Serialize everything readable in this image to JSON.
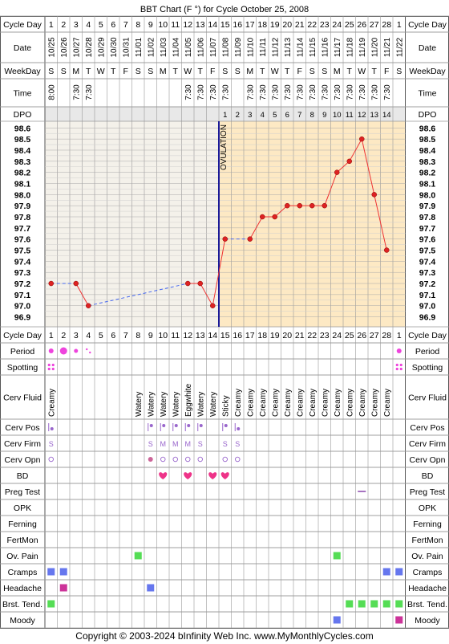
{
  "title": "BBT Chart (F °) for Cycle October 25, 2008",
  "footer": "Copyright © 2003-2024 bInfinity Web Inc.    www.MyMonthlyCycles.com",
  "row_labels": {
    "cycle_day": "Cycle Day",
    "date": "Date",
    "weekday": "WeekDay",
    "time": "Time",
    "dpo": "DPO",
    "period": "Period",
    "spotting": "Spotting",
    "cerv_fluid": "Cerv Fluid",
    "cerv_pos": "Cerv Pos",
    "cerv_firm": "Cerv Firm",
    "cerv_opn": "Cerv Opn",
    "bd": "BD",
    "preg_test": "Preg Test",
    "opk": "OPK",
    "ferning": "Ferning",
    "fertmon": "FertMon",
    "ov_pain": "Ov. Pain",
    "cramps": "Cramps",
    "headache": "Headache",
    "brst_tend": "Brst. Tend.",
    "moody": "Moody"
  },
  "days": [
    "1",
    "2",
    "3",
    "4",
    "5",
    "6",
    "7",
    "8",
    "9",
    "10",
    "11",
    "12",
    "13",
    "14",
    "15",
    "16",
    "17",
    "18",
    "19",
    "20",
    "21",
    "22",
    "23",
    "24",
    "25",
    "26",
    "27",
    "28",
    "1"
  ],
  "dates": [
    "10/25",
    "10/26",
    "10/27",
    "10/28",
    "10/29",
    "10/30",
    "10/31",
    "11/01",
    "11/02",
    "11/03",
    "11/04",
    "11/05",
    "11/06",
    "11/07",
    "11/08",
    "11/09",
    "11/10",
    "11/11",
    "11/12",
    "11/13",
    "11/14",
    "11/15",
    "11/16",
    "11/17",
    "11/18",
    "11/19",
    "11/20",
    "11/21",
    "11/22"
  ],
  "weekdays": [
    "S",
    "S",
    "M",
    "T",
    "W",
    "T",
    "F",
    "S",
    "S",
    "M",
    "T",
    "W",
    "T",
    "F",
    "S",
    "S",
    "M",
    "T",
    "W",
    "T",
    "F",
    "S",
    "S",
    "M",
    "T",
    "W",
    "T",
    "F",
    "S"
  ],
  "times": [
    "8:00",
    "",
    "7:30",
    "7:30",
    "",
    "",
    "",
    "",
    "",
    "",
    "",
    "7:30",
    "7:30",
    "7:30",
    "7:30",
    "",
    "7:30",
    "7:30",
    "7:30",
    "7:30",
    "7:30",
    "7:30",
    "7:30",
    "7:30",
    "7:30",
    "7:30",
    "7:30",
    "7:30",
    ""
  ],
  "dpo": [
    "",
    "",
    "",
    "",
    "",
    "",
    "",
    "",
    "",
    "",
    "",
    "",
    "",
    "",
    "1",
    "2",
    "3",
    "4",
    "5",
    "6",
    "7",
    "8",
    "9",
    "10",
    "11",
    "12",
    "13",
    "14",
    ""
  ],
  "temp_labels": [
    "98.6",
    "98.5",
    "98.4",
    "98.3",
    "98.2",
    "98.1",
    "98.0",
    "97.9",
    "97.8",
    "97.7",
    "97.6",
    "97.5",
    "97.4",
    "97.3",
    "97.2",
    "97.1",
    "97.0",
    "96.9"
  ],
  "ovulation_label": "OVULATION",
  "cerv_fluid": [
    "Creamy",
    "",
    "",
    "",
    "",
    "",
    "",
    "Watery",
    "Watery",
    "Watery",
    "Watery",
    "Eggwhite",
    "Watery",
    "Watery",
    "Sticky",
    "Creamy",
    "Creamy",
    "Creamy",
    "Creamy",
    "Creamy",
    "Creamy",
    "Creamy",
    "Creamy",
    "Creamy",
    "Creamy",
    "Creamy",
    "Creamy",
    "Creamy",
    ""
  ],
  "cerv_firm": [
    "S",
    "",
    "",
    "",
    "",
    "",
    "",
    "",
    "S",
    "M",
    "M",
    "M",
    "S",
    "",
    "S",
    "S",
    "",
    "",
    "",
    "",
    "",
    "",
    "",
    "",
    "",
    "",
    "",
    "",
    ""
  ],
  "colors": {
    "grid": "#999999",
    "header_bg": "#ffffff",
    "post_ov_bg": "#fde9c4",
    "plot_bg": "#ffffff",
    "temp_line": "#ee3333",
    "temp_dot": "#dd2222",
    "missing_line": "#4466ee",
    "ovulation_line": "#1a1a99",
    "period": "#ee44dd",
    "heart": "#ee3388",
    "green": "#55dd55",
    "blue": "#6677ee",
    "magenta": "#cc3399",
    "purple": "#9966cc",
    "preg_test": "#8844aa"
  },
  "chart_data": {
    "type": "line",
    "title": "BBT Chart (F °) for Cycle October 25, 2008",
    "xlabel": "Cycle Day",
    "ylabel": "",
    "ylim": [
      96.9,
      98.6
    ],
    "x": [
      1,
      2,
      3,
      4,
      5,
      6,
      7,
      8,
      9,
      10,
      11,
      12,
      13,
      14,
      15,
      16,
      17,
      18,
      19,
      20,
      21,
      22,
      23,
      24,
      25,
      26,
      27,
      28,
      29
    ],
    "series": [
      {
        "values": [
          97.2,
          null,
          97.2,
          97.0,
          null,
          null,
          null,
          null,
          null,
          null,
          null,
          97.2,
          97.2,
          97.0,
          97.6,
          null,
          97.6,
          97.8,
          97.8,
          97.9,
          97.9,
          97.9,
          97.9,
          98.2,
          98.3,
          98.5,
          98.0,
          97.5,
          null
        ]
      }
    ],
    "ovulation_day": 14,
    "grid": true
  },
  "period": [
    2,
    3,
    1,
    0.5,
    0,
    0,
    0,
    0,
    0,
    0,
    0,
    0,
    0,
    0,
    0,
    0,
    0,
    0,
    0,
    0,
    0,
    0,
    0,
    0,
    0,
    0,
    0,
    0,
    2
  ],
  "spotting": [
    1,
    0,
    0,
    0,
    0,
    0,
    0,
    0,
    0,
    0,
    0,
    0,
    0,
    0,
    0,
    0,
    0,
    0,
    0,
    0,
    0,
    0,
    0,
    0,
    0,
    0,
    0,
    0,
    1
  ],
  "cerv_pos": [
    1,
    0,
    0,
    0,
    0,
    0,
    0,
    0,
    1,
    1,
    1,
    1,
    1,
    0,
    1,
    1,
    0,
    0,
    0,
    0,
    0,
    0,
    0,
    0,
    0,
    0,
    0,
    0,
    0
  ],
  "cerv_opn": [
    1,
    0,
    0,
    0,
    0,
    0,
    0,
    0,
    2,
    1,
    1,
    1,
    1,
    0,
    1,
    1,
    0,
    0,
    0,
    0,
    0,
    0,
    0,
    0,
    0,
    0,
    0,
    0,
    0
  ],
  "bd": [
    0,
    0,
    0,
    0,
    0,
    0,
    0,
    0,
    0,
    1,
    0,
    1,
    0,
    1,
    1,
    0,
    0,
    0,
    0,
    0,
    0,
    0,
    0,
    0,
    0,
    0,
    0,
    0,
    0
  ],
  "preg_test": [
    0,
    0,
    0,
    0,
    0,
    0,
    0,
    0,
    0,
    0,
    0,
    0,
    0,
    0,
    0,
    0,
    0,
    0,
    0,
    0,
    0,
    0,
    0,
    0,
    0,
    1,
    0,
    0,
    0
  ],
  "ov_pain": [
    0,
    0,
    0,
    0,
    0,
    0,
    0,
    1,
    0,
    0,
    0,
    0,
    0,
    0,
    0,
    0,
    0,
    0,
    0,
    0,
    0,
    0,
    0,
    1,
    0,
    0,
    0,
    0,
    0
  ],
  "cramps": [
    1,
    1,
    0,
    0,
    0,
    0,
    0,
    0,
    0,
    0,
    0,
    0,
    0,
    0,
    0,
    0,
    0,
    0,
    0,
    0,
    0,
    0,
    0,
    0,
    0,
    0,
    0,
    1,
    1
  ],
  "headache": [
    0,
    1,
    0,
    0,
    0,
    0,
    0,
    0,
    1,
    0,
    0,
    0,
    0,
    0,
    0,
    0,
    0,
    0,
    0,
    0,
    0,
    0,
    0,
    0,
    0,
    0,
    0,
    0,
    0
  ],
  "brst_tend": [
    1,
    0,
    0,
    0,
    0,
    0,
    0,
    0,
    0,
    0,
    0,
    0,
    0,
    0,
    0,
    0,
    0,
    0,
    0,
    0,
    0,
    0,
    0,
    0,
    1,
    1,
    1,
    1,
    1
  ],
  "moody": [
    0,
    0,
    0,
    0,
    0,
    0,
    0,
    0,
    0,
    0,
    0,
    0,
    0,
    0,
    0,
    0,
    0,
    0,
    0,
    0,
    0,
    0,
    0,
    1,
    0,
    0,
    0,
    0,
    1
  ]
}
